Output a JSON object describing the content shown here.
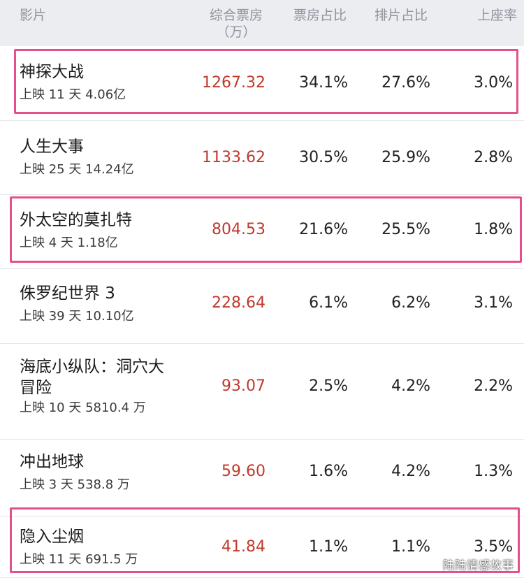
{
  "header": {
    "film": "影片",
    "box_office_line1": "综合票房",
    "box_office_line2": "（万）",
    "box_share": "票房占比",
    "screening_share": "排片占比",
    "seat_rate": "上座率"
  },
  "rows": [
    {
      "name": "神探大战",
      "sub": "上映 11 天  4.06亿",
      "box": "1267.32",
      "box_share": "34.1%",
      "screening_share": "27.6%",
      "seat_rate": "3.0%",
      "highlighted": true
    },
    {
      "name": "人生大事",
      "sub": "上映 25 天  14.24亿",
      "box": "1133.62",
      "box_share": "30.5%",
      "screening_share": "25.9%",
      "seat_rate": "2.8%",
      "highlighted": false
    },
    {
      "name": "外太空的莫扎特",
      "sub": "上映 4 天  1.18亿",
      "box": "804.53",
      "box_share": "21.6%",
      "screening_share": "25.5%",
      "seat_rate": "1.8%",
      "highlighted": true
    },
    {
      "name": "侏罗纪世界 3",
      "sub": "上映 39 天  10.10亿",
      "box": "228.64",
      "box_share": "6.1%",
      "screening_share": "6.2%",
      "seat_rate": "3.1%",
      "highlighted": false
    },
    {
      "name": "海底小纵队：洞穴大冒险",
      "sub": "上映 10 天  5810.4 万",
      "box": "93.07",
      "box_share": "2.5%",
      "screening_share": "4.2%",
      "seat_rate": "2.2%",
      "highlighted": false
    },
    {
      "name": "冲出地球",
      "sub": "上映 3 天  538.8 万",
      "box": "59.60",
      "box_share": "1.6%",
      "screening_share": "4.2%",
      "seat_rate": "1.3%",
      "highlighted": false
    },
    {
      "name": "隐入尘烟",
      "sub": "上映 11 天  691.5 万",
      "box": "41.84",
      "box_share": "1.1%",
      "screening_share": "1.1%",
      "seat_rate": "3.5%",
      "highlighted": true
    }
  ],
  "watermark": "陆陆情感故事",
  "colors": {
    "accent_box": "#c0392b",
    "highlight_border": "#e4508b"
  }
}
